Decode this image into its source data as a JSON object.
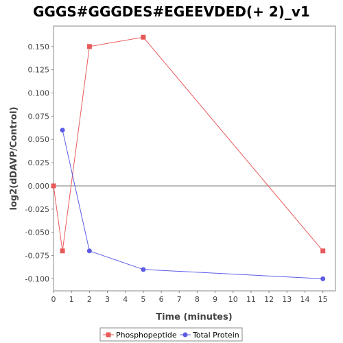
{
  "chart_data": {
    "type": "line",
    "title": "GGGS#GGGDES#EGEEVDED(+ 2)_v1",
    "xlabel": "Time (minutes)",
    "ylabel": "log2(dDAVP/Control)",
    "xlim": [
      0,
      15.7
    ],
    "ylim": [
      -0.113,
      0.172
    ],
    "xticks": [
      0,
      1,
      2,
      3,
      4,
      5,
      6,
      7,
      8,
      9,
      10,
      11,
      12,
      13,
      14,
      15
    ],
    "yticks": [
      0.15,
      0.125,
      0.1,
      0.075,
      0.05,
      0.025,
      0.0,
      -0.025,
      -0.05,
      -0.075,
      -0.1
    ],
    "ytick_labels": [
      "0.150",
      "0.125",
      "0.100",
      "0.075",
      "0.050",
      "0.025",
      "0.000",
      "-0.025",
      "-0.050",
      "-0.075",
      "-0.100"
    ],
    "grid": false,
    "zero_line": true,
    "legend_position": "bottom",
    "series": [
      {
        "name": "Phosphopeptide",
        "color": "#e8595a",
        "marker": "square",
        "x": [
          0,
          0.5,
          2,
          5,
          15
        ],
        "y": [
          0.0,
          -0.07,
          0.15,
          0.16,
          -0.07
        ]
      },
      {
        "name": "Total Protein",
        "color": "#5b5be8",
        "marker": "circle",
        "x": [
          0.5,
          2,
          5,
          15
        ],
        "y": [
          0.06,
          -0.07,
          -0.09,
          -0.1
        ]
      }
    ]
  }
}
